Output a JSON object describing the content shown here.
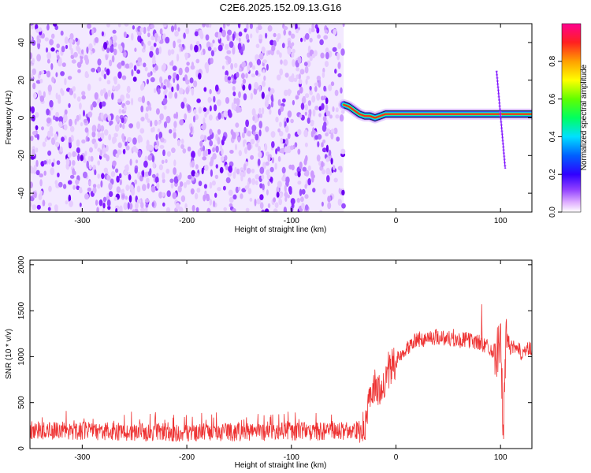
{
  "title": "C2E6.2025.152.09.13.G16",
  "chart_data": [
    {
      "type": "heatmap",
      "title": "C2E6.2025.152.09.13.G16",
      "xlabel": "Height of straight line (km)",
      "ylabel": "Frequency (Hz)",
      "xlim": [
        -350,
        130
      ],
      "ylim": [
        -50,
        50
      ],
      "x_ticks": [
        -300,
        -200,
        -100,
        0,
        100
      ],
      "y_ticks": [
        -40,
        -20,
        0,
        20,
        40
      ],
      "noise_region_x": [
        -350,
        -50
      ],
      "signal_trace": {
        "x": [
          -50,
          -45,
          -40,
          -35,
          -30,
          -25,
          -20,
          -15,
          -10,
          -5,
          0,
          20,
          40,
          60,
          80,
          90,
          100,
          110,
          120,
          130
        ],
        "y": [
          7,
          6,
          4,
          2,
          1,
          1,
          0,
          1,
          2,
          2,
          2,
          2,
          2,
          2,
          2,
          2,
          2,
          2,
          2,
          2
        ]
      },
      "spike_x": 100,
      "colorbar": {
        "label": "Normalized spectral amplitude",
        "range": [
          0,
          1
        ],
        "ticks": [
          "0.0",
          "0.2",
          "0.4",
          "0.6",
          "0.8"
        ],
        "colors": [
          "#ffffff",
          "#d080ff",
          "#8000ff",
          "#0000ff",
          "#00ffff",
          "#00ff00",
          "#ffff00",
          "#ff8000",
          "#ff0000",
          "#ff0080"
        ]
      }
    },
    {
      "type": "line",
      "xlabel": "Height of straight line (km)",
      "ylabel": "SNR (10 * v/v)",
      "xlim": [
        -350,
        130
      ],
      "ylim": [
        0,
        2050
      ],
      "x_ticks": [
        -300,
        -200,
        -100,
        0,
        100
      ],
      "y_ticks": [
        0,
        500,
        1000,
        1500,
        2000
      ],
      "color": "#ee3333",
      "series": [
        {
          "x": [
            -350,
            -300,
            -250,
            -200,
            -150,
            -100,
            -50,
            -35,
            -30,
            -25,
            -20,
            -15,
            -10,
            -5,
            0,
            10,
            20,
            30,
            40,
            50,
            60,
            70,
            80,
            90,
            95,
            100,
            103,
            105,
            110,
            120,
            130
          ],
          "y": [
            160,
            150,
            140,
            135,
            140,
            145,
            150,
            160,
            250,
            500,
            700,
            600,
            700,
            880,
            950,
            1100,
            1180,
            1200,
            1220,
            1200,
            1180,
            1180,
            1150,
            1100,
            1050,
            1150,
            150,
            1200,
            1100,
            1050,
            1080
          ]
        }
      ]
    }
  ]
}
